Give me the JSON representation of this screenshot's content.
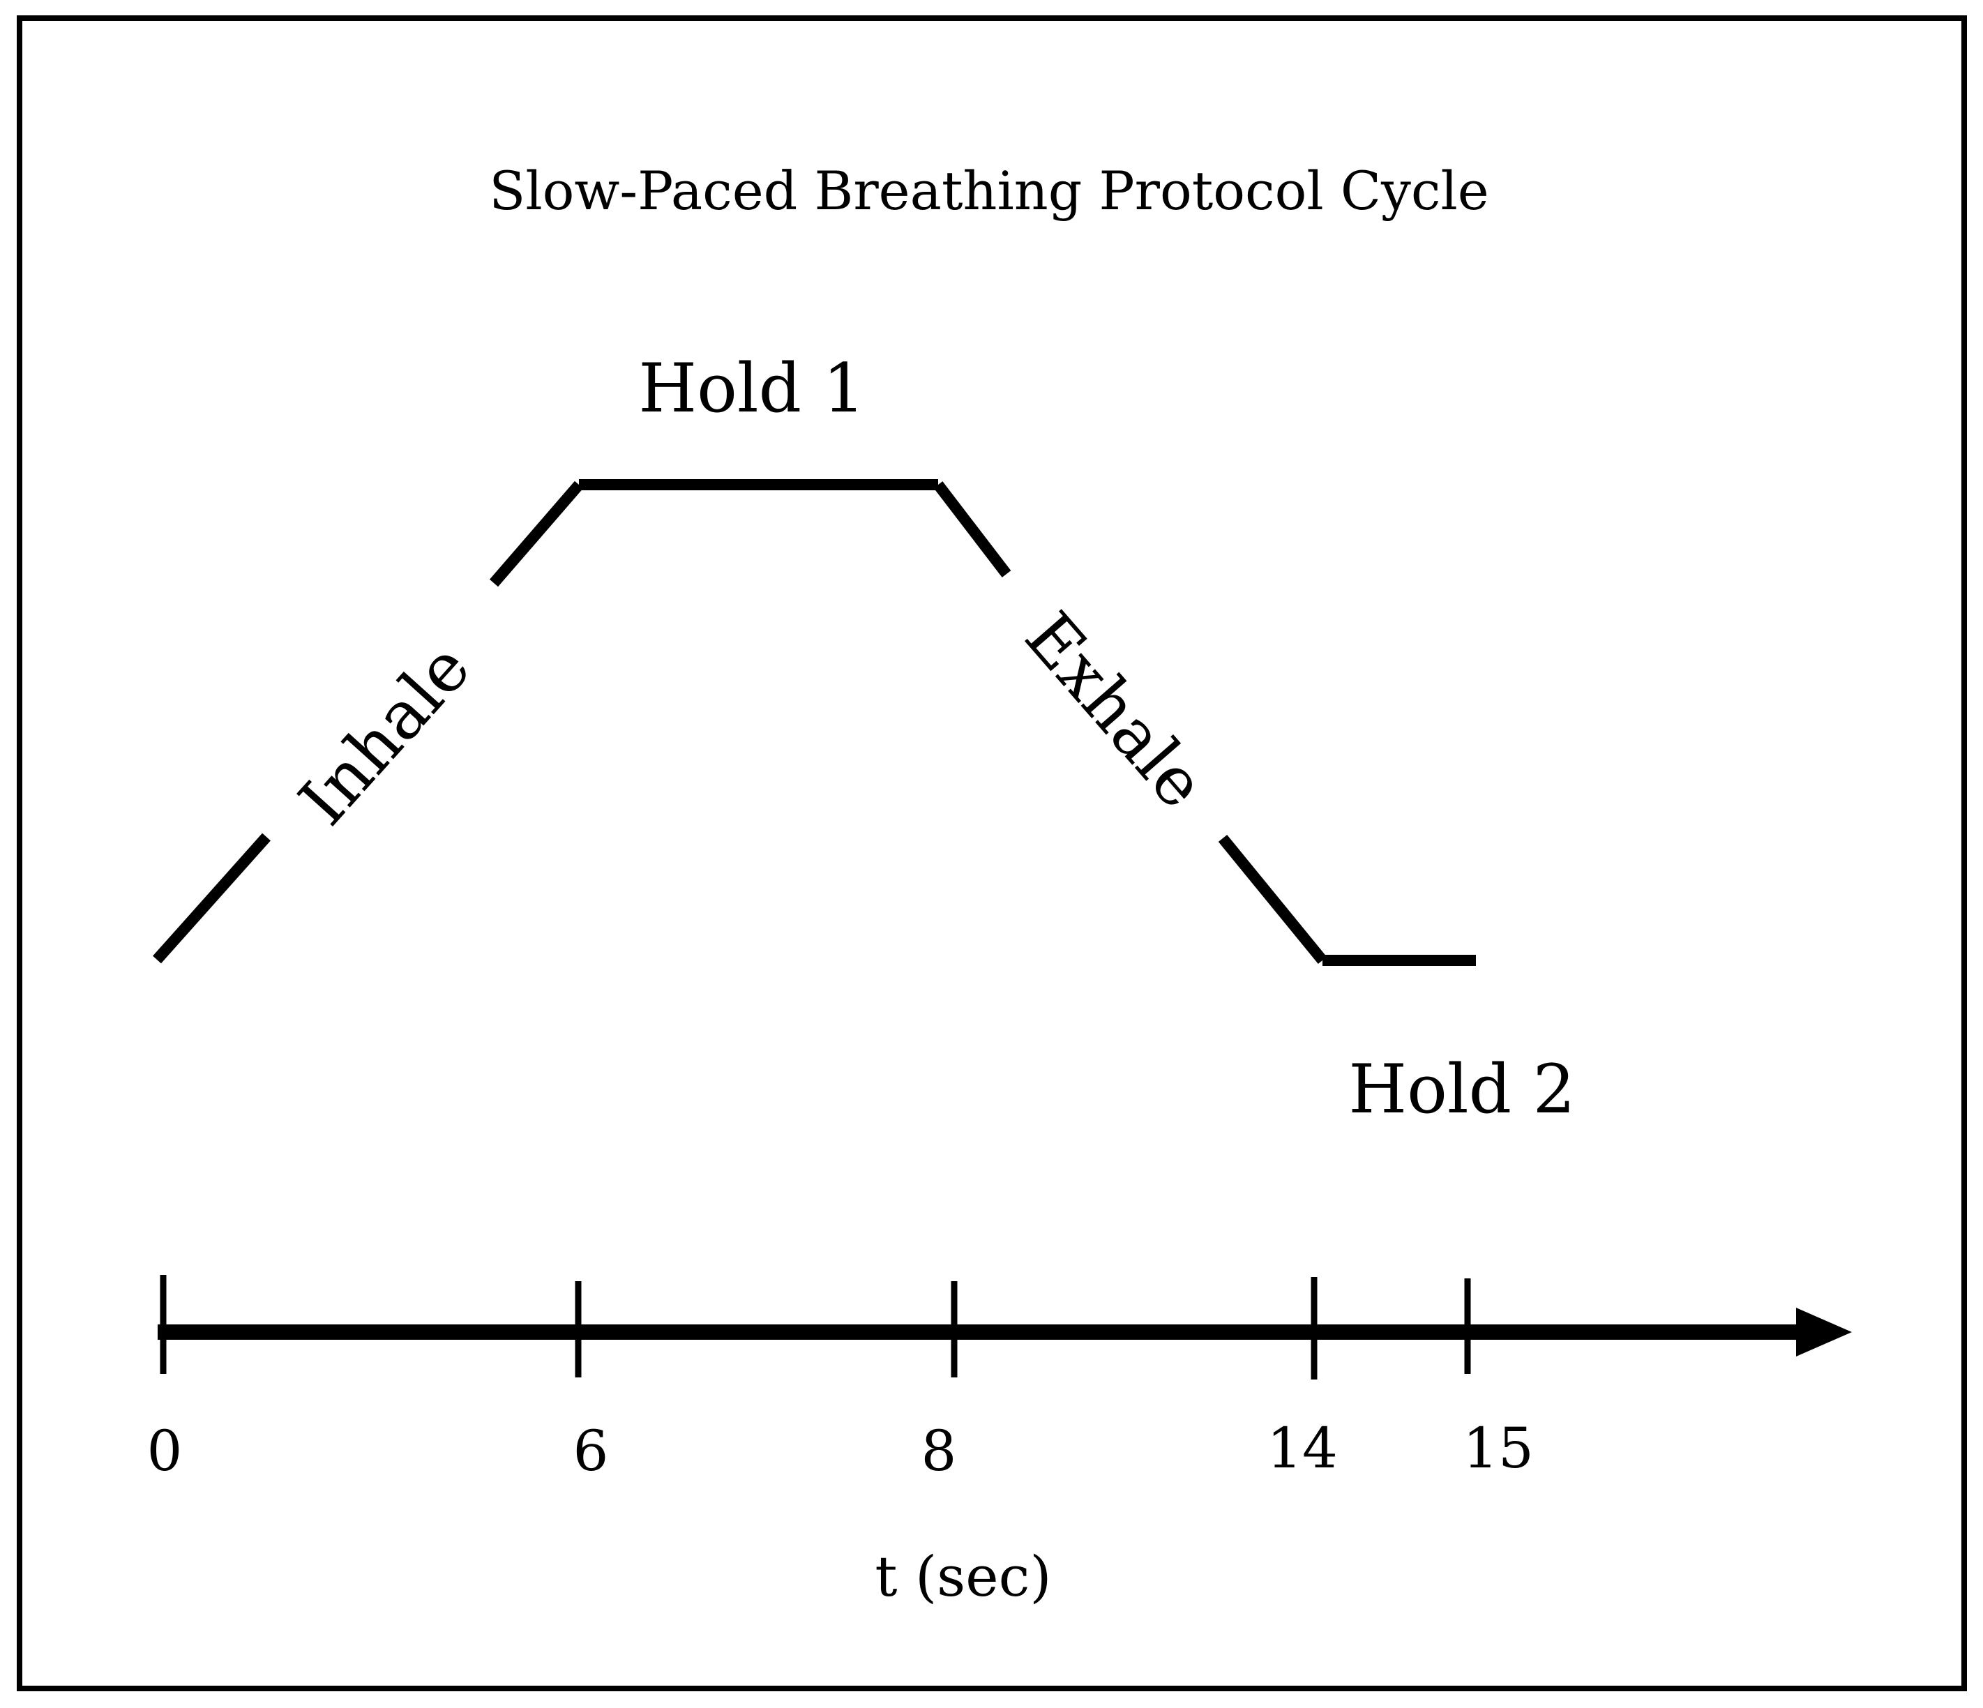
{
  "title": "Slow-Paced Breathing Protocol Cycle",
  "phases": {
    "inhale": "Inhale",
    "hold1": "Hold 1",
    "exhale": "Exhale",
    "hold2": "Hold 2"
  },
  "axis": {
    "label": "t (sec)",
    "ticks": [
      "0",
      "6",
      "8",
      "14",
      "15"
    ]
  },
  "colors": {
    "line": "#000000",
    "background": "#ffffff",
    "frame": "#000000"
  }
}
